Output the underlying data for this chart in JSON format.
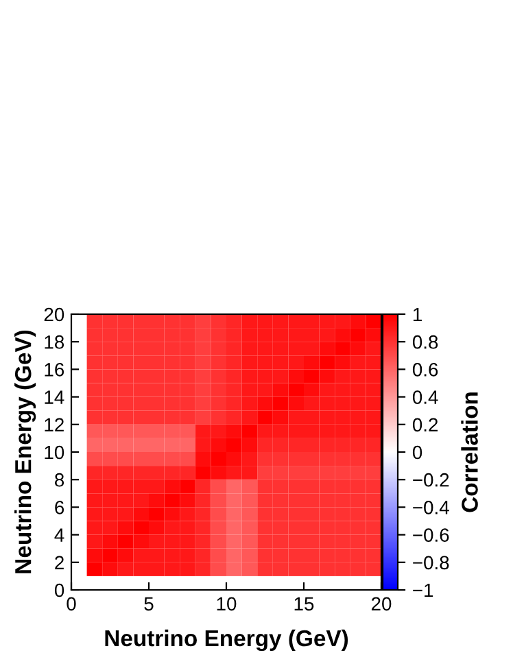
{
  "chart_data": {
    "type": "heatmap",
    "xlabel": "Neutrino Energy (GeV)",
    "ylabel": "Neutrino Energy (GeV)",
    "clabel": "Correlation",
    "x": [
      1.5,
      2.5,
      3.5,
      4.5,
      5.5,
      6.5,
      7.5,
      8.5,
      9.5,
      10.5,
      11.5,
      12.5,
      13.5,
      14.5,
      15.5,
      16.5,
      17.5,
      18.5,
      19.5
    ],
    "y": [
      19.5,
      18.5,
      17.5,
      16.5,
      15.5,
      14.5,
      13.5,
      12.5,
      11.5,
      10.5,
      9.5,
      8.5,
      7.5,
      6.5,
      5.5,
      4.5,
      3.5,
      2.5,
      1.5
    ],
    "xlim": [
      0,
      20
    ],
    "ylim": [
      0,
      20
    ],
    "xticks": [
      0,
      5,
      10,
      15,
      20
    ],
    "yticks": [
      0,
      2,
      4,
      6,
      8,
      10,
      12,
      14,
      16,
      18,
      20
    ],
    "clim": [
      -1,
      1
    ],
    "cticks": [
      {
        "value": -1,
        "label": "−1"
      },
      {
        "value": -0.8,
        "label": "−0.8"
      },
      {
        "value": -0.6,
        "label": "−0.6"
      },
      {
        "value": -0.4,
        "label": "−0.4"
      },
      {
        "value": -0.2,
        "label": "−0.2"
      },
      0,
      0.2,
      0.4,
      0.6,
      0.8,
      1
    ],
    "colors": [
      "#0000ff",
      "#ffffff",
      "#ff0000"
    ],
    "cells": [
      [
        0.8,
        0.8,
        0.8,
        0.8,
        0.8,
        0.8,
        0.8,
        0.75,
        0.8,
        0.85,
        0.9,
        0.9,
        0.9,
        0.9,
        0.9,
        0.9,
        0.9,
        0.95,
        1
      ],
      [
        0.8,
        0.8,
        0.8,
        0.8,
        0.8,
        0.8,
        0.8,
        0.75,
        0.8,
        0.85,
        0.9,
        0.9,
        0.9,
        0.9,
        0.9,
        0.9,
        0.95,
        1,
        0.95
      ],
      [
        0.8,
        0.8,
        0.8,
        0.8,
        0.8,
        0.8,
        0.8,
        0.75,
        0.8,
        0.85,
        0.9,
        0.9,
        0.9,
        0.9,
        0.9,
        0.95,
        1,
        0.95,
        0.9
      ],
      [
        0.8,
        0.8,
        0.8,
        0.8,
        0.8,
        0.8,
        0.8,
        0.75,
        0.8,
        0.85,
        0.9,
        0.9,
        0.9,
        0.9,
        0.95,
        1,
        0.95,
        0.9,
        0.9
      ],
      [
        0.8,
        0.8,
        0.8,
        0.8,
        0.8,
        0.8,
        0.8,
        0.75,
        0.8,
        0.85,
        0.9,
        0.9,
        0.9,
        0.95,
        1,
        0.95,
        0.9,
        0.9,
        0.9
      ],
      [
        0.8,
        0.8,
        0.8,
        0.8,
        0.8,
        0.8,
        0.8,
        0.75,
        0.8,
        0.85,
        0.9,
        0.9,
        0.95,
        1,
        0.95,
        0.9,
        0.9,
        0.9,
        0.9
      ],
      [
        0.8,
        0.8,
        0.8,
        0.8,
        0.8,
        0.8,
        0.8,
        0.75,
        0.8,
        0.85,
        0.9,
        0.95,
        1,
        0.95,
        0.9,
        0.9,
        0.9,
        0.9,
        0.9
      ],
      [
        0.8,
        0.8,
        0.8,
        0.8,
        0.8,
        0.8,
        0.8,
        0.75,
        0.8,
        0.85,
        0.9,
        1,
        0.95,
        0.9,
        0.9,
        0.9,
        0.9,
        0.9,
        0.9
      ],
      [
        0.65,
        0.65,
        0.65,
        0.65,
        0.65,
        0.65,
        0.65,
        0.9,
        0.9,
        0.95,
        1,
        0.9,
        0.9,
        0.9,
        0.9,
        0.9,
        0.9,
        0.9,
        0.9
      ],
      [
        0.6,
        0.6,
        0.6,
        0.6,
        0.6,
        0.6,
        0.6,
        0.9,
        0.95,
        1,
        0.95,
        0.85,
        0.85,
        0.85,
        0.85,
        0.85,
        0.85,
        0.85,
        0.85
      ],
      [
        0.7,
        0.7,
        0.7,
        0.7,
        0.7,
        0.7,
        0.7,
        0.95,
        1,
        0.95,
        0.9,
        0.8,
        0.8,
        0.8,
        0.8,
        0.8,
        0.8,
        0.8,
        0.8
      ],
      [
        0.85,
        0.85,
        0.85,
        0.85,
        0.85,
        0.85,
        0.85,
        1,
        0.95,
        0.9,
        0.9,
        0.75,
        0.75,
        0.75,
        0.75,
        0.75,
        0.75,
        0.75,
        0.75
      ],
      [
        0.9,
        0.9,
        0.9,
        0.9,
        0.9,
        0.95,
        1,
        0.85,
        0.7,
        0.6,
        0.65,
        0.8,
        0.8,
        0.8,
        0.8,
        0.8,
        0.8,
        0.8,
        0.8
      ],
      [
        0.9,
        0.9,
        0.9,
        0.9,
        0.95,
        1,
        0.95,
        0.85,
        0.7,
        0.6,
        0.65,
        0.8,
        0.8,
        0.8,
        0.8,
        0.8,
        0.8,
        0.8,
        0.8
      ],
      [
        0.9,
        0.9,
        0.9,
        0.95,
        1,
        0.95,
        0.9,
        0.85,
        0.7,
        0.6,
        0.65,
        0.8,
        0.8,
        0.8,
        0.8,
        0.8,
        0.8,
        0.8,
        0.8
      ],
      [
        0.9,
        0.9,
        0.95,
        1,
        0.95,
        0.9,
        0.9,
        0.85,
        0.7,
        0.6,
        0.65,
        0.8,
        0.8,
        0.8,
        0.8,
        0.8,
        0.8,
        0.8,
        0.8
      ],
      [
        0.9,
        0.95,
        1,
        0.95,
        0.9,
        0.9,
        0.9,
        0.85,
        0.7,
        0.6,
        0.65,
        0.8,
        0.8,
        0.8,
        0.8,
        0.8,
        0.8,
        0.8,
        0.8
      ],
      [
        0.95,
        1,
        0.95,
        0.9,
        0.9,
        0.9,
        0.9,
        0.85,
        0.7,
        0.6,
        0.65,
        0.8,
        0.8,
        0.8,
        0.8,
        0.8,
        0.8,
        0.8,
        0.8
      ],
      [
        1,
        0.95,
        0.9,
        0.9,
        0.9,
        0.9,
        0.9,
        0.85,
        0.7,
        0.6,
        0.65,
        0.8,
        0.8,
        0.8,
        0.8,
        0.8,
        0.8,
        0.8,
        0.8
      ]
    ]
  }
}
